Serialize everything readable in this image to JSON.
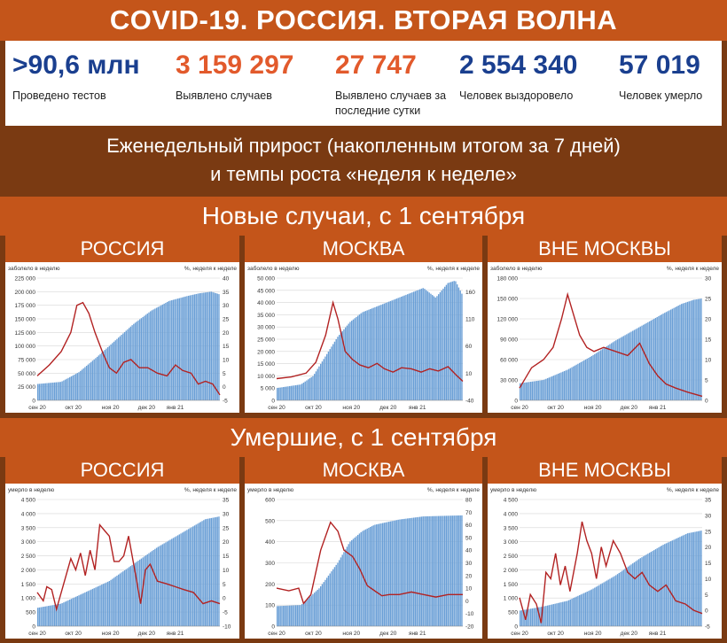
{
  "title": "COVID-19. РОССИЯ. ВТОРАЯ ВОЛНА",
  "stats": [
    {
      "value": ">90,6 млн",
      "label": "Проведено тестов",
      "color": "#1a3f8f"
    },
    {
      "value": "3 159 297",
      "label": "Выявлено случаев",
      "color": "#e25a2c"
    },
    {
      "value": "27 747",
      "label": "Выявлено случаев за последние сутки",
      "color": "#e25a2c"
    },
    {
      "value": "2 554 340",
      "label": "Человек выздоровело",
      "color": "#1a3f8f"
    },
    {
      "value": "57 019",
      "label": "Человек умерло",
      "color": "#1a3f8f"
    }
  ],
  "weekly": {
    "line1": "Еженедельный прирост (накопленным итогом за 7 дней)",
    "line2": "и темпы роста «неделя к неделе»"
  },
  "sections": {
    "cases": "Новые случаи, с 1 сентября",
    "deaths": "Умершие, с 1 сентября"
  },
  "colors": {
    "bars": "#6a9fd6",
    "line": "#b22222",
    "header": "#c4551a",
    "background": "#7a3a12"
  },
  "chart_data": [
    {
      "type": "bar+line",
      "region": "РОССИЯ",
      "group": "cases",
      "ylabel": "заболело в неделю",
      "y2label": "%, неделя к неделе",
      "x_ticks": [
        "сен 20",
        "окт 20",
        "ноя 20",
        "дек 20",
        "янв 21"
      ],
      "y_ticks": [
        "0",
        "25 000",
        "50 000",
        "75 000",
        "100 000",
        "125 000",
        "150 000",
        "175 000",
        "200 000",
        "225 000"
      ],
      "y2_ticks": [
        "-5",
        "0",
        "5",
        "10",
        "15",
        "20",
        "25",
        "30",
        "35",
        "40"
      ],
      "ylim": [
        0,
        225000
      ],
      "y2lim": [
        -5,
        40
      ],
      "bar_points": [
        [
          0,
          30000
        ],
        [
          20,
          34000
        ],
        [
          35,
          52000
        ],
        [
          50,
          80000
        ],
        [
          65,
          110000
        ],
        [
          80,
          140000
        ],
        [
          95,
          165000
        ],
        [
          110,
          183000
        ],
        [
          125,
          192000
        ],
        [
          135,
          197000
        ],
        [
          145,
          200000
        ],
        [
          152,
          195000
        ]
      ],
      "line_points": [
        [
          0,
          4
        ],
        [
          10,
          8
        ],
        [
          20,
          13
        ],
        [
          28,
          20
        ],
        [
          33,
          30
        ],
        [
          38,
          31
        ],
        [
          43,
          27
        ],
        [
          48,
          20
        ],
        [
          55,
          12
        ],
        [
          60,
          7
        ],
        [
          66,
          5
        ],
        [
          72,
          9
        ],
        [
          78,
          10
        ],
        [
          85,
          7
        ],
        [
          92,
          7
        ],
        [
          100,
          5
        ],
        [
          108,
          4
        ],
        [
          115,
          8
        ],
        [
          121,
          6
        ],
        [
          128,
          5
        ],
        [
          134,
          1
        ],
        [
          140,
          2
        ],
        [
          146,
          1
        ],
        [
          152,
          -3
        ]
      ]
    },
    {
      "type": "bar+line",
      "region": "МОСКВА",
      "group": "cases",
      "ylabel": "заболело в неделю",
      "y2label": "%, неделя к неделе",
      "x_ticks": [
        "сен 20",
        "окт 20",
        "ноя 20",
        "дек 20",
        "янв 21"
      ],
      "y_ticks": [
        "0",
        "5 000",
        "10 000",
        "15 000",
        "20 000",
        "25 000",
        "30 000",
        "35 000",
        "40 000",
        "45 000",
        "50 000"
      ],
      "y2_ticks": [
        "-40",
        "10",
        "60",
        "110",
        "160"
      ],
      "ylim": [
        0,
        50000
      ],
      "y2lim": [
        -40,
        185
      ],
      "bar_points": [
        [
          0,
          5000
        ],
        [
          20,
          6500
        ],
        [
          30,
          10000
        ],
        [
          40,
          18000
        ],
        [
          50,
          26000
        ],
        [
          60,
          32000
        ],
        [
          70,
          36000
        ],
        [
          80,
          38000
        ],
        [
          90,
          40000
        ],
        [
          100,
          42000
        ],
        [
          110,
          44000
        ],
        [
          120,
          46000
        ],
        [
          130,
          42000
        ],
        [
          140,
          48000
        ],
        [
          146,
          49000
        ],
        [
          152,
          43000
        ]
      ],
      "line_points": [
        [
          0,
          0
        ],
        [
          12,
          3
        ],
        [
          24,
          10
        ],
        [
          32,
          30
        ],
        [
          40,
          80
        ],
        [
          46,
          140
        ],
        [
          50,
          110
        ],
        [
          56,
          50
        ],
        [
          62,
          35
        ],
        [
          68,
          25
        ],
        [
          75,
          20
        ],
        [
          82,
          28
        ],
        [
          88,
          18
        ],
        [
          95,
          12
        ],
        [
          102,
          20
        ],
        [
          110,
          18
        ],
        [
          118,
          12
        ],
        [
          125,
          18
        ],
        [
          132,
          14
        ],
        [
          140,
          22
        ],
        [
          146,
          8
        ],
        [
          152,
          -5
        ]
      ]
    },
    {
      "type": "bar+line",
      "region": "ВНЕ МОСКВЫ",
      "group": "cases",
      "ylabel": "заболело в неделю",
      "y2label": "%, неделя к неделе",
      "x_ticks": [
        "сен 20",
        "окт 20",
        "ноя 20",
        "дек 20",
        "янв 21"
      ],
      "y_ticks": [
        "0",
        "30 000",
        "60 000",
        "90 000",
        "120 000",
        "150 000",
        "180 000"
      ],
      "y2_ticks": [
        "0",
        "5",
        "10",
        "15",
        "20",
        "25",
        "30"
      ],
      "ylim": [
        0,
        180000
      ],
      "y2lim": [
        0,
        30
      ],
      "bar_points": [
        [
          0,
          25000
        ],
        [
          20,
          30000
        ],
        [
          40,
          45000
        ],
        [
          60,
          65000
        ],
        [
          80,
          88000
        ],
        [
          100,
          108000
        ],
        [
          120,
          128000
        ],
        [
          135,
          142000
        ],
        [
          145,
          148000
        ],
        [
          152,
          150000
        ]
      ],
      "line_points": [
        [
          0,
          3
        ],
        [
          10,
          8
        ],
        [
          20,
          10
        ],
        [
          28,
          13
        ],
        [
          35,
          20
        ],
        [
          40,
          26
        ],
        [
          44,
          22
        ],
        [
          50,
          16
        ],
        [
          56,
          13
        ],
        [
          62,
          12
        ],
        [
          70,
          13
        ],
        [
          80,
          12
        ],
        [
          90,
          11
        ],
        [
          100,
          14
        ],
        [
          108,
          9
        ],
        [
          115,
          6
        ],
        [
          122,
          4
        ],
        [
          130,
          3
        ],
        [
          140,
          2
        ],
        [
          152,
          1
        ]
      ]
    },
    {
      "type": "bar+line",
      "region": "РОССИЯ",
      "group": "deaths",
      "ylabel": "умерло в неделю",
      "y2label": "%, неделя к неделе",
      "x_ticks": [
        "сен 20",
        "окт 20",
        "ноя 20",
        "дек 20",
        "янв 21"
      ],
      "y_ticks": [
        "0",
        "500",
        "1 000",
        "1 500",
        "2 000",
        "2 500",
        "3 000",
        "3 500",
        "4 000",
        "4 500"
      ],
      "y2_ticks": [
        "-10",
        "-5",
        "0",
        "5",
        "10",
        "15",
        "20",
        "25",
        "30",
        "35"
      ],
      "ylim": [
        0,
        4500
      ],
      "y2lim": [
        -10,
        35
      ],
      "bar_points": [
        [
          0,
          650
        ],
        [
          20,
          800
        ],
        [
          40,
          1200
        ],
        [
          60,
          1600
        ],
        [
          80,
          2200
        ],
        [
          100,
          2800
        ],
        [
          120,
          3300
        ],
        [
          140,
          3800
        ],
        [
          152,
          3900
        ]
      ],
      "line_points": [
        [
          0,
          2
        ],
        [
          5,
          -1
        ],
        [
          8,
          4
        ],
        [
          12,
          3
        ],
        [
          16,
          -4
        ],
        [
          22,
          5
        ],
        [
          28,
          14
        ],
        [
          32,
          10
        ],
        [
          36,
          16
        ],
        [
          40,
          8
        ],
        [
          44,
          17
        ],
        [
          48,
          10
        ],
        [
          52,
          26
        ],
        [
          56,
          24
        ],
        [
          60,
          22
        ],
        [
          64,
          13
        ],
        [
          68,
          13
        ],
        [
          72,
          15
        ],
        [
          76,
          22
        ],
        [
          82,
          8
        ],
        [
          86,
          -2
        ],
        [
          90,
          10
        ],
        [
          94,
          12
        ],
        [
          100,
          6
        ],
        [
          108,
          5
        ],
        [
          115,
          4
        ],
        [
          122,
          3
        ],
        [
          130,
          2
        ],
        [
          138,
          -2
        ],
        [
          145,
          -1
        ],
        [
          152,
          -2
        ]
      ]
    },
    {
      "type": "bar+line",
      "region": "МОСКВА",
      "group": "deaths",
      "ylabel": "умерло в неделю",
      "y2label": "%, неделя к неделе",
      "x_ticks": [
        "сен 20",
        "окт 20",
        "ноя 20",
        "дек 20",
        "янв 21"
      ],
      "y_ticks": [
        "0",
        "100",
        "200",
        "300",
        "400",
        "500",
        "600"
      ],
      "y2_ticks": [
        "-20",
        "-10",
        "0",
        "10",
        "20",
        "30",
        "40",
        "50",
        "60",
        "70",
        "80"
      ],
      "ylim": [
        0,
        600
      ],
      "y2lim": [
        -20,
        80
      ],
      "bar_points": [
        [
          0,
          95
        ],
        [
          20,
          100
        ],
        [
          35,
          180
        ],
        [
          50,
          300
        ],
        [
          60,
          400
        ],
        [
          70,
          450
        ],
        [
          80,
          480
        ],
        [
          100,
          505
        ],
        [
          120,
          520
        ],
        [
          152,
          525
        ]
      ],
      "line_points": [
        [
          0,
          10
        ],
        [
          10,
          8
        ],
        [
          18,
          10
        ],
        [
          22,
          -2
        ],
        [
          28,
          5
        ],
        [
          36,
          40
        ],
        [
          44,
          62
        ],
        [
          50,
          55
        ],
        [
          55,
          40
        ],
        [
          62,
          35
        ],
        [
          68,
          25
        ],
        [
          74,
          12
        ],
        [
          80,
          8
        ],
        [
          86,
          4
        ],
        [
          92,
          5
        ],
        [
          100,
          5
        ],
        [
          110,
          7
        ],
        [
          120,
          5
        ],
        [
          130,
          3
        ],
        [
          140,
          5
        ],
        [
          152,
          5
        ]
      ]
    },
    {
      "type": "bar+line",
      "region": "ВНЕ МОСКВЫ",
      "group": "deaths",
      "ylabel": "умерло в неделю",
      "y2label": "%, неделя к неделе",
      "x_ticks": [
        "сен 20",
        "окт 20",
        "ноя 20",
        "дек 20",
        "янв 21"
      ],
      "y_ticks": [
        "0",
        "500",
        "1 000",
        "1 500",
        "2 000",
        "2 500",
        "3 000",
        "3 500",
        "4 000",
        "4 500"
      ],
      "y2_ticks": [
        "-5",
        "0",
        "5",
        "10",
        "15",
        "20",
        "25",
        "30",
        "35"
      ],
      "ylim": [
        0,
        4500
      ],
      "y2lim": [
        -5,
        35
      ],
      "bar_points": [
        [
          0,
          550
        ],
        [
          20,
          700
        ],
        [
          40,
          900
        ],
        [
          60,
          1300
        ],
        [
          80,
          1800
        ],
        [
          100,
          2400
        ],
        [
          120,
          2900
        ],
        [
          140,
          3300
        ],
        [
          152,
          3400
        ]
      ],
      "line_points": [
        [
          0,
          4
        ],
        [
          5,
          -3
        ],
        [
          9,
          5
        ],
        [
          14,
          2
        ],
        [
          18,
          -4
        ],
        [
          22,
          12
        ],
        [
          26,
          10
        ],
        [
          30,
          18
        ],
        [
          34,
          8
        ],
        [
          38,
          14
        ],
        [
          42,
          6
        ],
        [
          48,
          18
        ],
        [
          52,
          28
        ],
        [
          56,
          22
        ],
        [
          60,
          18
        ],
        [
          64,
          10
        ],
        [
          68,
          20
        ],
        [
          72,
          14
        ],
        [
          78,
          22
        ],
        [
          84,
          18
        ],
        [
          90,
          12
        ],
        [
          96,
          10
        ],
        [
          102,
          12
        ],
        [
          108,
          8
        ],
        [
          115,
          6
        ],
        [
          122,
          8
        ],
        [
          130,
          3
        ],
        [
          138,
          2
        ],
        [
          145,
          0
        ],
        [
          152,
          -1
        ]
      ]
    }
  ]
}
